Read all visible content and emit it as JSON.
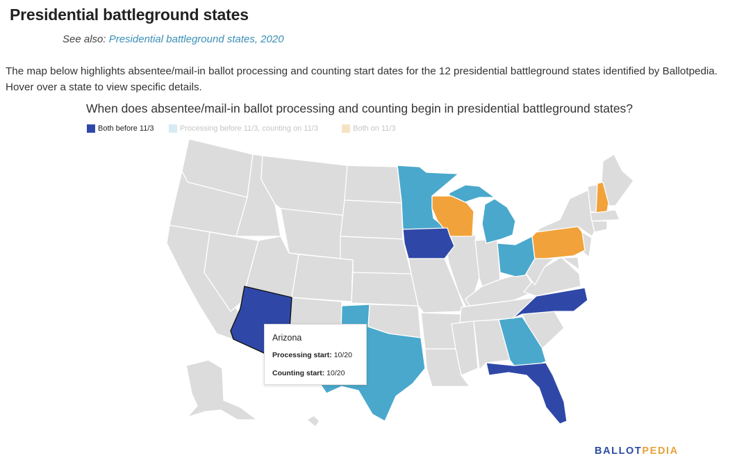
{
  "header": {
    "title": "Presidential battleground states",
    "see_also_prefix": "See also:",
    "see_also_link": "Presidential battleground states, 2020"
  },
  "intro": "The map below highlights absentee/mail-in ballot processing and counting start dates for the 12 presidential battleground states identified by Ballotpedia. Hover over a state to view specific details.",
  "map": {
    "title": "When does absentee/mail-in ballot processing and counting begin in presidential battleground states?",
    "legend": [
      {
        "label": "Both before 11/3",
        "color": "#2f48a8",
        "active": true
      },
      {
        "label": "Processing before 11/3, counting on 11/3",
        "color": "#4aa8cc",
        "active": false
      },
      {
        "label": "Both on 11/3",
        "color": "#f2a23a",
        "active": false
      }
    ],
    "colors": {
      "both_before": "#2f48a8",
      "processing_before": "#4aa8cc",
      "both_on": "#f2a23a",
      "other_state": "#dcdcdc",
      "border": "#ffffff"
    },
    "states": [
      {
        "name": "Arizona",
        "category": "both_before"
      },
      {
        "name": "Iowa",
        "category": "both_before"
      },
      {
        "name": "North Carolina",
        "category": "both_before"
      },
      {
        "name": "Florida",
        "category": "both_before"
      },
      {
        "name": "Minnesota",
        "category": "processing_before"
      },
      {
        "name": "Michigan",
        "category": "processing_before"
      },
      {
        "name": "Ohio",
        "category": "processing_before"
      },
      {
        "name": "Georgia",
        "category": "processing_before"
      },
      {
        "name": "Texas",
        "category": "processing_before"
      },
      {
        "name": "Wisconsin",
        "category": "both_on"
      },
      {
        "name": "Pennsylvania",
        "category": "both_on"
      },
      {
        "name": "New Hampshire",
        "category": "both_on"
      }
    ],
    "tooltip": {
      "state": "Arizona",
      "processing_label": "Processing start:",
      "processing_value": "10/20",
      "counting_label": "Counting start:",
      "counting_value": "10/20"
    }
  },
  "logo": {
    "part1": "BALLOT",
    "part2": "PEDIA"
  }
}
